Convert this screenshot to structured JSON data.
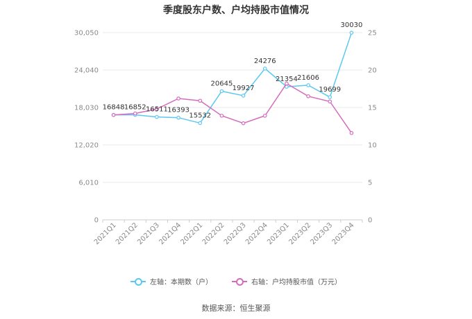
{
  "chart_data": {
    "type": "line",
    "title": "季度股东户数、户均持股市值情况",
    "categories": [
      "2021Q1",
      "2021Q2",
      "2021Q3",
      "2021Q4",
      "2022Q1",
      "2022Q2",
      "2022Q3",
      "2022Q4",
      "2023Q1",
      "2023Q2",
      "2023Q3",
      "2023Q4"
    ],
    "left_axis": {
      "ticks": [
        "0",
        "6,010",
        "12,020",
        "18,030",
        "24,040",
        "30,050"
      ],
      "ylim": [
        0,
        30050
      ]
    },
    "right_axis": {
      "ticks": [
        "0",
        "5",
        "10",
        "15",
        "20",
        "25"
      ],
      "ylim": [
        0,
        25
      ]
    },
    "series": [
      {
        "name": "左轴：本期数（户）",
        "axis": "left",
        "color": "#5bc8ef",
        "values": [
          16848,
          16852,
          16511,
          16393,
          15532,
          20645,
          19927,
          24276,
          21354,
          21606,
          19699,
          30030
        ],
        "labels": [
          "16848",
          "16852",
          "16511",
          "16393",
          "15532",
          "20645",
          "19927",
          "24276",
          "21354",
          "21606",
          "19699",
          "30030"
        ]
      },
      {
        "name": "右轴：户均持股市值（万元）",
        "axis": "right",
        "color": "#d56bbd",
        "values": [
          14.0,
          14.2,
          14.8,
          16.2,
          15.9,
          13.9,
          12.9,
          13.9,
          18.2,
          16.5,
          15.8,
          11.6
        ]
      }
    ],
    "grid": true,
    "legend_position": "bottom"
  },
  "source": "数据来源：恒生聚源"
}
